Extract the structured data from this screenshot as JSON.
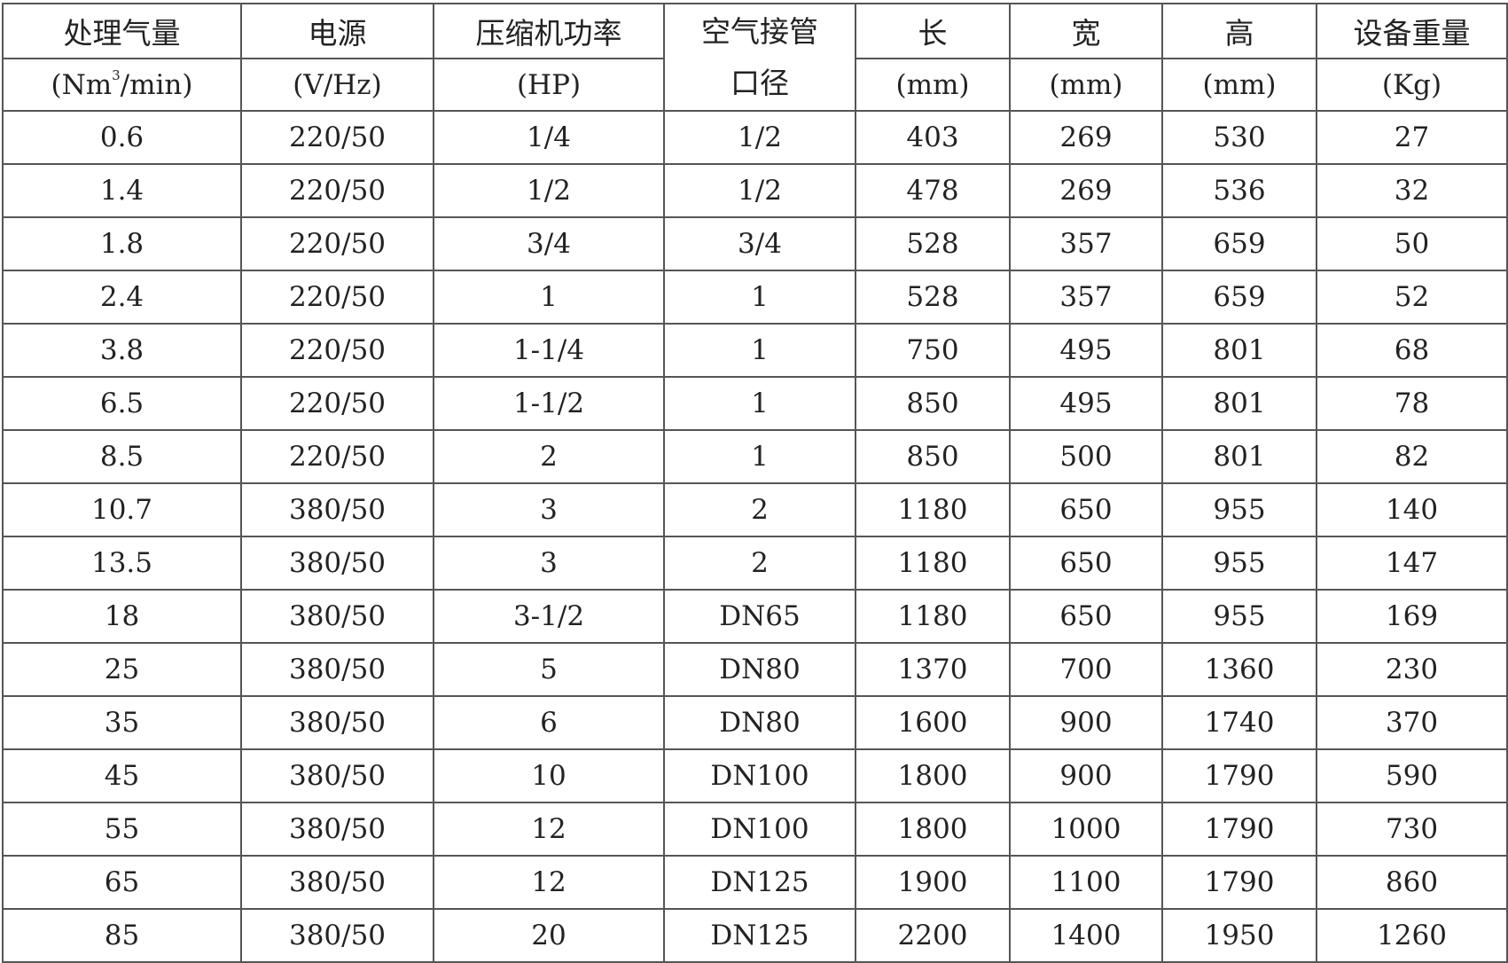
{
  "headers": {
    "row1": [
      "处理气量",
      "电源",
      "压缩机功率",
      "空气接管",
      "长",
      "宽",
      "高",
      "设备重量"
    ],
    "pipe_line2": "口径",
    "row2": {
      "flow_pre": "(Nm",
      "flow_sup": "3",
      "flow_post": "/min)",
      "power": "(V/Hz)",
      "hp": "(HP)",
      "len": "(mm)",
      "wid": "(mm)",
      "hei": "(mm)",
      "wt": "(Kg)"
    }
  },
  "rows": [
    [
      "0.6",
      "220/50",
      "1/4",
      "1/2",
      "403",
      "269",
      "530",
      "27"
    ],
    [
      "1.4",
      "220/50",
      "1/2",
      "1/2",
      "478",
      "269",
      "536",
      "32"
    ],
    [
      "1.8",
      "220/50",
      "3/4",
      "3/4",
      "528",
      "357",
      "659",
      "50"
    ],
    [
      "2.4",
      "220/50",
      "1",
      "1",
      "528",
      "357",
      "659",
      "52"
    ],
    [
      "3.8",
      "220/50",
      "1-1/4",
      "1",
      "750",
      "495",
      "801",
      "68"
    ],
    [
      "6.5",
      "220/50",
      "1-1/2",
      "1",
      "850",
      "495",
      "801",
      "78"
    ],
    [
      "8.5",
      "220/50",
      "2",
      "1",
      "850",
      "500",
      "801",
      "82"
    ],
    [
      "10.7",
      "380/50",
      "3",
      "2",
      "1180",
      "650",
      "955",
      "140"
    ],
    [
      "13.5",
      "380/50",
      "3",
      "2",
      "1180",
      "650",
      "955",
      "147"
    ],
    [
      "18",
      "380/50",
      "3-1/2",
      "DN65",
      "1180",
      "650",
      "955",
      "169"
    ],
    [
      "25",
      "380/50",
      "5",
      "DN80",
      "1370",
      "700",
      "1360",
      "230"
    ],
    [
      "35",
      "380/50",
      "6",
      "DN80",
      "1600",
      "900",
      "1740",
      "370"
    ],
    [
      "45",
      "380/50",
      "10",
      "DN100",
      "1800",
      "900",
      "1790",
      "590"
    ],
    [
      "55",
      "380/50",
      "12",
      "DN100",
      "1800",
      "1000",
      "1790",
      "730"
    ],
    [
      "65",
      "380/50",
      "12",
      "DN125",
      "1900",
      "1100",
      "1790",
      "860"
    ],
    [
      "85",
      "380/50",
      "20",
      "DN125",
      "2200",
      "1400",
      "1950",
      "1260"
    ]
  ]
}
